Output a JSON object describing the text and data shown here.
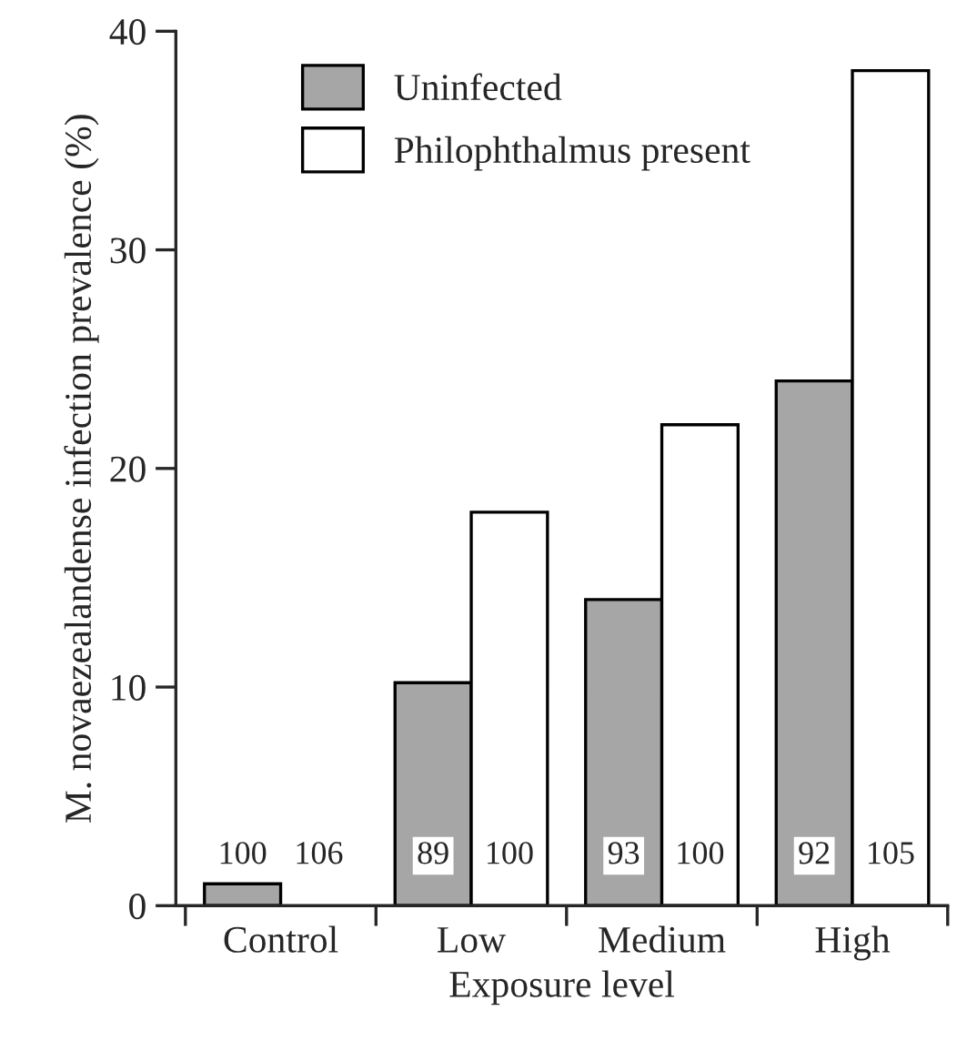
{
  "chart_data": {
    "type": "bar",
    "xlabel": "Exposure level",
    "ylabel": "M. novaezealandense infection prevalence (%)",
    "categories": [
      "Control",
      "Low",
      "Medium",
      "High"
    ],
    "series": [
      {
        "name": "Uninfected",
        "color": "#a6a6a6",
        "values": [
          1,
          10.2,
          14,
          24
        ]
      },
      {
        "name": "Philophthalmus present",
        "color": "#ffffff",
        "values": [
          null,
          18,
          22,
          38.2
        ]
      }
    ],
    "ylim": [
      0,
      40
    ],
    "yticks": [
      0,
      10,
      20,
      30,
      40
    ],
    "grid": false,
    "legend": "top left",
    "annotations": [
      "100",
      "106",
      "89",
      "100",
      "93",
      "100",
      "92",
      "105"
    ]
  }
}
